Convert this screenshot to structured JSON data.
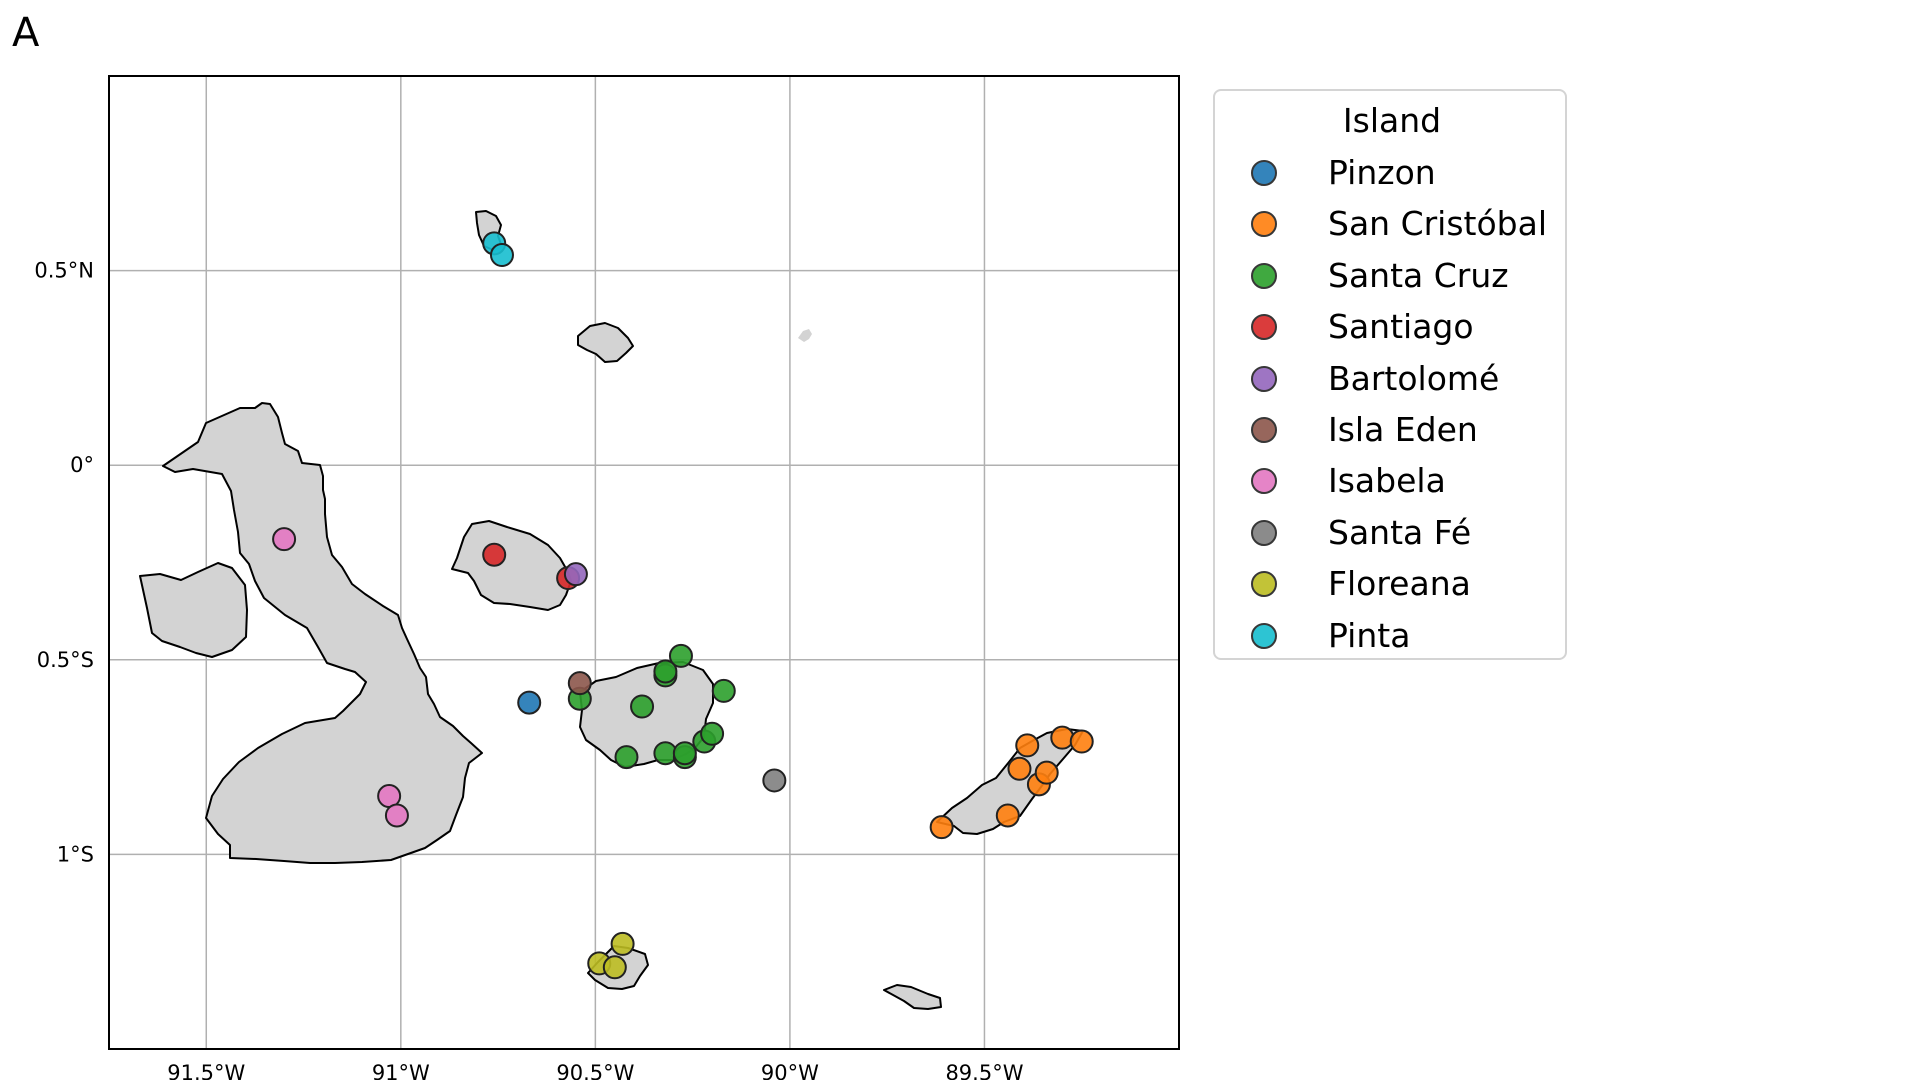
{
  "panel_label": "A",
  "colors": {
    "land": "#d3d3d3",
    "coast": "#000000",
    "grid": "#b0b0b0"
  },
  "map": {
    "projection": "PlateCarree",
    "extent": {
      "lon": [
        -91.75,
        -89.0
      ],
      "lat": [
        -1.5,
        1.0
      ]
    },
    "x_ticks": [
      {
        "lon": -91.5,
        "label": "91.5°W"
      },
      {
        "lon": -91.0,
        "label": "91°W"
      },
      {
        "lon": -90.5,
        "label": "90.5°W"
      },
      {
        "lon": -90.0,
        "label": "90°W"
      },
      {
        "lon": -89.5,
        "label": "89.5°W"
      }
    ],
    "y_ticks": [
      {
        "lat": 0.5,
        "label": "0.5°N"
      },
      {
        "lat": 0.0,
        "label": "0°"
      },
      {
        "lat": -0.5,
        "label": "0.5°S"
      },
      {
        "lat": -1.0,
        "label": "1°S"
      }
    ],
    "grid": true
  },
  "legend": {
    "title": "Island",
    "position": "right",
    "items": [
      {
        "name": "Pinzon",
        "color": "#1f77b4"
      },
      {
        "name": "San Cristóbal",
        "color": "#ff7f0e"
      },
      {
        "name": "Santa Cruz",
        "color": "#2ca02c"
      },
      {
        "name": "Santiago",
        "color": "#d62728"
      },
      {
        "name": "Bartolomé",
        "color": "#9467bd"
      },
      {
        "name": "Isla Eden",
        "color": "#8c564b"
      },
      {
        "name": "Isabela",
        "color": "#e377c2"
      },
      {
        "name": "Santa Fé",
        "color": "#7f7f7f"
      },
      {
        "name": "Floreana",
        "color": "#bcbd22"
      },
      {
        "name": "Pinta",
        "color": "#17becf"
      }
    ]
  },
  "points": [
    {
      "island": "Pinzon",
      "lon": -90.67,
      "lat": -0.61
    },
    {
      "island": "San Cristóbal",
      "lon": -89.61,
      "lat": -0.93
    },
    {
      "island": "San Cristóbal",
      "lon": -89.44,
      "lat": -0.9
    },
    {
      "island": "San Cristóbal",
      "lon": -89.41,
      "lat": -0.78
    },
    {
      "island": "San Cristóbal",
      "lon": -89.39,
      "lat": -0.72
    },
    {
      "island": "San Cristóbal",
      "lon": -89.36,
      "lat": -0.82
    },
    {
      "island": "San Cristóbal",
      "lon": -89.34,
      "lat": -0.79
    },
    {
      "island": "San Cristóbal",
      "lon": -89.3,
      "lat": -0.7
    },
    {
      "island": "San Cristóbal",
      "lon": -89.25,
      "lat": -0.71
    },
    {
      "island": "Santa Cruz",
      "lon": -90.54,
      "lat": -0.6
    },
    {
      "island": "Santa Cruz",
      "lon": -90.42,
      "lat": -0.75
    },
    {
      "island": "Santa Cruz",
      "lon": -90.38,
      "lat": -0.62
    },
    {
      "island": "Santa Cruz",
      "lon": -90.32,
      "lat": -0.74
    },
    {
      "island": "Santa Cruz",
      "lon": -90.32,
      "lat": -0.54
    },
    {
      "island": "Santa Cruz",
      "lon": -90.32,
      "lat": -0.53
    },
    {
      "island": "Santa Cruz",
      "lon": -90.27,
      "lat": -0.75
    },
    {
      "island": "Santa Cruz",
      "lon": -90.27,
      "lat": -0.74
    },
    {
      "island": "Santa Cruz",
      "lon": -90.28,
      "lat": -0.49
    },
    {
      "island": "Santa Cruz",
      "lon": -90.22,
      "lat": -0.71
    },
    {
      "island": "Santa Cruz",
      "lon": -90.2,
      "lat": -0.69
    },
    {
      "island": "Santa Cruz",
      "lon": -90.17,
      "lat": -0.58
    },
    {
      "island": "Santiago",
      "lon": -90.76,
      "lat": -0.23
    },
    {
      "island": "Santiago",
      "lon": -90.57,
      "lat": -0.29
    },
    {
      "island": "Bartolomé",
      "lon": -90.55,
      "lat": -0.28
    },
    {
      "island": "Isla Eden",
      "lon": -90.54,
      "lat": -0.56
    },
    {
      "island": "Isabela",
      "lon": -91.3,
      "lat": -0.19
    },
    {
      "island": "Isabela",
      "lon": -91.03,
      "lat": -0.85
    },
    {
      "island": "Isabela",
      "lon": -91.01,
      "lat": -0.9
    },
    {
      "island": "Santa Fé",
      "lon": -90.04,
      "lat": -0.81
    },
    {
      "island": "Floreana",
      "lon": -90.43,
      "lat": -1.23
    },
    {
      "island": "Floreana",
      "lon": -90.49,
      "lat": -1.28
    },
    {
      "island": "Floreana",
      "lon": -90.45,
      "lat": -1.29
    },
    {
      "island": "Pinta",
      "lon": -90.76,
      "lat": 0.57
    },
    {
      "island": "Pinta",
      "lon": -90.74,
      "lat": 0.54
    }
  ]
}
